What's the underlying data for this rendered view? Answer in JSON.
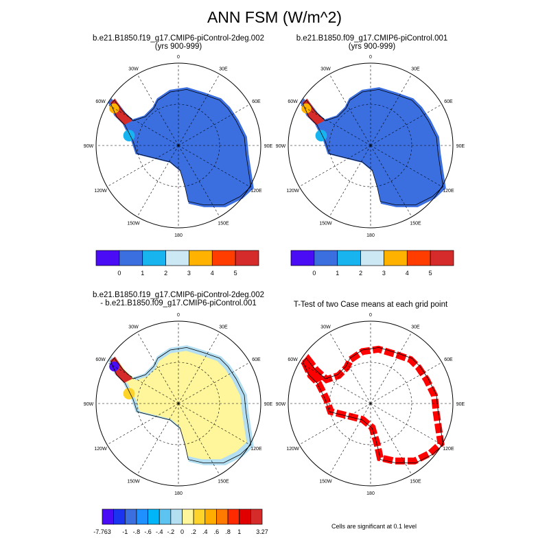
{
  "title": "ANN FSM (W/m^2)",
  "lon_labels": [
    "0",
    "30E",
    "60E",
    "90E",
    "120E",
    "150E",
    "180",
    "150W",
    "120W",
    "90W",
    "60W",
    "30W"
  ],
  "panels": [
    {
      "title1": "b.e21.B1850.f19_g17.CMIP6-piControl-2deg.002",
      "title2": "(yrs 900-999)"
    },
    {
      "title1": "b.e21.B1850.f09_g17.CMIP6-piControl.001",
      "title2": "(yrs 900-999)"
    },
    {
      "title1": "b.e21.B1850.f19_g17.CMIP6-piControl-2deg.002",
      "title2": "- b.e21.B1850.f09_g17.CMIP6-piControl.001"
    },
    {
      "title1": "T-Test of two Case means at each grid point",
      "title2": ""
    }
  ],
  "colorbar_main": {
    "colors": [
      "#4a0cf5",
      "#3b6fe0",
      "#17b4f0",
      "#cce8f5",
      "#ffb300",
      "#ff3d00",
      "#d62b2b"
    ],
    "labels": [
      "",
      "0",
      "1",
      "2",
      "3",
      "4",
      "5",
      ""
    ]
  },
  "colorbar_diff": {
    "colors": [
      "#4a0cf5",
      "#1a34f0",
      "#3b6fe0",
      "#1e90ff",
      "#00b5f8",
      "#5dc4f2",
      "#b4dff3",
      "#fff59a",
      "#ffd42a",
      "#ffae00",
      "#ff7a00",
      "#ff2a00",
      "#e00000",
      "#d62b2b"
    ],
    "labels": [
      "-7.763",
      "",
      "-1",
      "-.8",
      "-.6",
      "-.4",
      "-.2",
      "0",
      ".2",
      ".4",
      ".6",
      ".8",
      "1",
      "",
      "3.27"
    ]
  },
  "ttest_note": "Cells are significant at 0.1 level"
}
